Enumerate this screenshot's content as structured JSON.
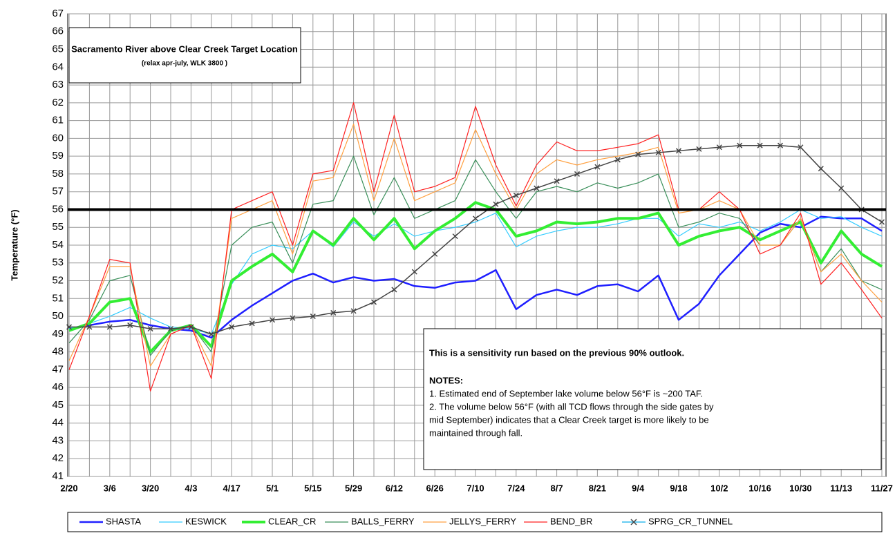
{
  "chart_data": {
    "type": "line",
    "title": "Sacramento River above Clear Creek Target Location",
    "subtitle": "(relax apr-july, WLK 3800 )",
    "y_label": "Temperature (°F)",
    "categories": [
      "2/20",
      null,
      "3/6",
      null,
      "3/20",
      null,
      "4/3",
      null,
      "4/17",
      null,
      "5/1",
      null,
      "5/15",
      null,
      "5/29",
      null,
      "6/12",
      null,
      "6/26",
      null,
      "7/10",
      null,
      "7/24",
      null,
      "8/7",
      null,
      "8/21",
      null,
      "9/4",
      null,
      "9/18",
      null,
      "10/2",
      null,
      "10/16",
      null,
      "10/30",
      null,
      "11/13",
      null,
      "11/27"
    ],
    "ylim": [
      41,
      67
    ],
    "yticks": [
      41,
      42,
      43,
      44,
      45,
      46,
      47,
      48,
      49,
      50,
      51,
      52,
      53,
      54,
      55,
      56,
      57,
      58,
      59,
      60,
      61,
      62,
      63,
      64,
      65,
      66,
      67
    ],
    "grid": true,
    "reference_line": 56,
    "notes": {
      "headline": "This is a sensitivity run based on the previous 90% outlook.",
      "heading": "NOTES:",
      "lines": [
        "1. Estimated end of September lake volume below 56°F is ~200 TAF.",
        "2. The volume below 56°F (with all TCD flows through the side gates by",
        "mid September) indicates that a Clear Creek target is more likely to be",
        "maintained through fall."
      ]
    },
    "series": [
      {
        "name": "SHASTA",
        "color": "#1f1fff",
        "width": 2.5,
        "values": [
          49.3,
          49.5,
          49.7,
          49.8,
          49.5,
          49.3,
          49.2,
          48.8,
          49.8,
          50.6,
          51.3,
          52.0,
          52.4,
          51.9,
          52.2,
          52.0,
          52.1,
          51.7,
          51.6,
          51.9,
          52.0,
          52.6,
          50.4,
          51.2,
          51.5,
          51.2,
          51.7,
          51.8,
          51.4,
          52.3,
          49.8,
          50.7,
          52.3,
          53.5,
          54.7,
          55.2,
          55.0,
          55.6,
          55.5,
          55.5,
          54.8
        ]
      },
      {
        "name": "KESWICK",
        "color": "#33ccff",
        "width": 1.2,
        "values": [
          49.3,
          49.6,
          50.0,
          50.5,
          49.9,
          49.4,
          49.3,
          49.0,
          51.8,
          53.5,
          54.0,
          53.8,
          54.8,
          53.9,
          55.3,
          54.5,
          55.2,
          54.5,
          54.8,
          55.0,
          55.3,
          55.8,
          53.9,
          54.5,
          54.8,
          55.0,
          55.0,
          55.2,
          55.5,
          55.5,
          54.5,
          55.2,
          55.0,
          55.3,
          54.8,
          55.3,
          56.0,
          55.5,
          55.6,
          55.0,
          54.5
        ]
      },
      {
        "name": "CLEAR_CR",
        "color": "#33ee33",
        "width": 4,
        "values": [
          49.2,
          49.6,
          50.8,
          51.0,
          48.0,
          49.2,
          49.5,
          48.3,
          52.0,
          52.8,
          53.5,
          52.5,
          54.8,
          54.0,
          55.5,
          54.3,
          55.5,
          53.8,
          54.8,
          55.5,
          56.4,
          56.0,
          54.5,
          54.8,
          55.3,
          55.2,
          55.3,
          55.5,
          55.5,
          55.8,
          54.0,
          54.5,
          54.8,
          55.0,
          54.3,
          54.8,
          55.3,
          53.0,
          54.8,
          53.5,
          52.8
        ]
      },
      {
        "name": "BALLS_FERRY",
        "color": "#3a8f5a",
        "width": 1.2,
        "values": [
          48.5,
          49.8,
          52.0,
          52.3,
          47.8,
          49.2,
          49.5,
          48.0,
          54.0,
          55.0,
          55.3,
          53.0,
          56.3,
          56.5,
          59.0,
          55.7,
          57.8,
          55.5,
          56.0,
          56.5,
          58.8,
          57.0,
          55.5,
          57.0,
          57.3,
          57.0,
          57.5,
          57.2,
          57.5,
          58.0,
          55.0,
          55.3,
          55.8,
          55.5,
          54.0,
          54.0,
          55.5,
          52.5,
          53.8,
          52.0,
          51.5
        ]
      },
      {
        "name": "JELLYS_FERRY",
        "color": "#ffa040",
        "width": 1.2,
        "values": [
          47.5,
          50.0,
          52.8,
          52.8,
          47.2,
          49.0,
          49.5,
          47.2,
          55.5,
          56.0,
          56.5,
          53.5,
          57.6,
          57.8,
          60.8,
          56.5,
          60.0,
          56.5,
          57.0,
          57.5,
          60.5,
          58.0,
          56.0,
          58.0,
          58.8,
          58.5,
          58.8,
          59.0,
          59.2,
          59.5,
          55.8,
          56.0,
          56.5,
          56.0,
          54.0,
          54.0,
          55.5,
          52.5,
          53.5,
          52.0,
          50.8
        ]
      },
      {
        "name": "BEND_BR",
        "color": "#ff2020",
        "width": 1.2,
        "values": [
          47.0,
          50.0,
          53.2,
          53.0,
          45.8,
          49.0,
          49.5,
          46.5,
          56.0,
          56.5,
          57.0,
          54.0,
          58.0,
          58.2,
          62.0,
          57.0,
          61.3,
          57.0,
          57.3,
          57.8,
          61.8,
          58.5,
          56.2,
          58.5,
          59.8,
          59.3,
          59.3,
          59.5,
          59.7,
          60.2,
          56.0,
          56.0,
          57.0,
          56.0,
          53.5,
          54.0,
          55.8,
          51.8,
          53.0,
          51.5,
          49.9
        ]
      },
      {
        "name": "SPRG_CR_TUNNEL",
        "color": "#444444",
        "legend_color": "#33bbee",
        "width": 1.5,
        "marker": "x",
        "values": [
          49.4,
          49.4,
          49.4,
          49.5,
          49.3,
          49.3,
          49.4,
          49.0,
          49.4,
          49.6,
          49.8,
          49.9,
          50.0,
          50.2,
          50.3,
          50.8,
          51.5,
          52.5,
          53.5,
          54.5,
          55.5,
          56.3,
          56.8,
          57.2,
          57.6,
          58.0,
          58.4,
          58.8,
          59.1,
          59.2,
          59.3,
          59.4,
          59.5,
          59.6,
          59.6,
          59.6,
          59.5,
          58.3,
          57.2,
          56.0,
          55.3
        ]
      }
    ]
  }
}
